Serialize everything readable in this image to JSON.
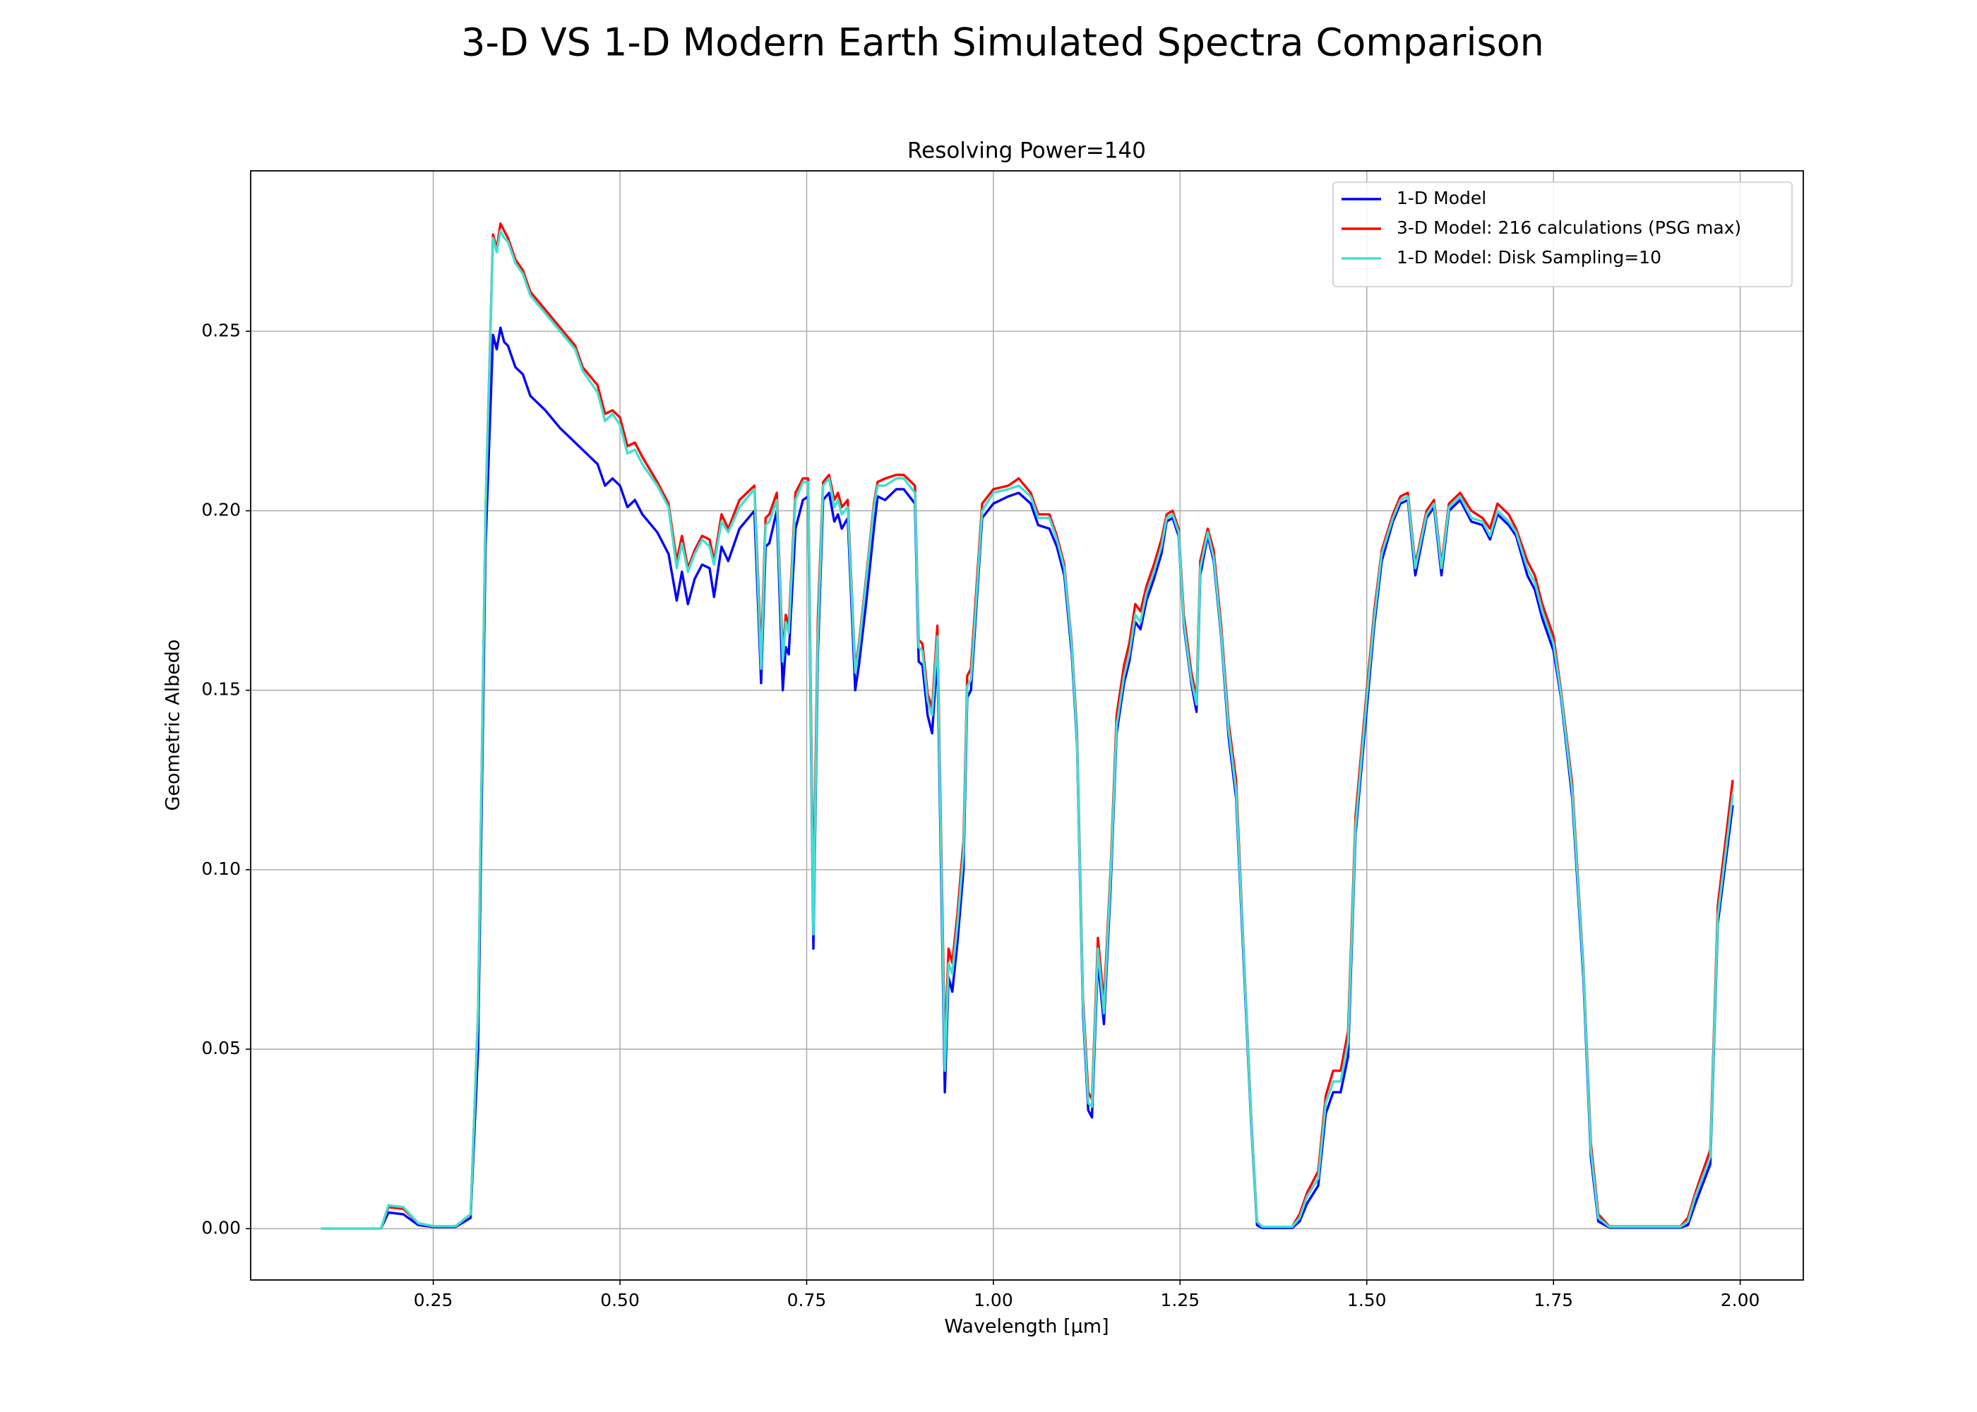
{
  "chart_data": {
    "type": "line",
    "title": "3-D VS 1-D Modern Earth Simulated Spectra Comparison",
    "subtitle": "Resolving Power=140",
    "x_label": "Wavelength [μm]",
    "y_label": "Geometric Albedo",
    "grid": true,
    "legend": "upper right",
    "xlim": [
      0.0055,
      2.0845
    ],
    "ylim": [
      -0.0143,
      0.2947
    ],
    "xticks": [
      {
        "value": 0.25,
        "label": "0.25"
      },
      {
        "value": 0.5,
        "label": "0.50"
      },
      {
        "value": 0.75,
        "label": "0.75"
      },
      {
        "value": 1.0,
        "label": "1.00"
      },
      {
        "value": 1.25,
        "label": "1.25"
      },
      {
        "value": 1.5,
        "label": "1.50"
      },
      {
        "value": 1.75,
        "label": "1.75"
      },
      {
        "value": 2.0,
        "label": "2.00"
      }
    ],
    "yticks": [
      {
        "value": 0,
        "label": "0.00"
      },
      {
        "value": 0.05,
        "label": "0.05"
      },
      {
        "value": 0.1,
        "label": "0.10"
      },
      {
        "value": 0.15,
        "label": "0.15"
      },
      {
        "value": 0.2,
        "label": "0.20"
      },
      {
        "value": 0.25,
        "label": "0.25"
      }
    ],
    "x": [
      0.1,
      0.18,
      0.19,
      0.21,
      0.23,
      0.25,
      0.28,
      0.3,
      0.31,
      0.32,
      0.33,
      0.335,
      0.34,
      0.345,
      0.35,
      0.36,
      0.37,
      0.38,
      0.4,
      0.42,
      0.44,
      0.45,
      0.47,
      0.48,
      0.49,
      0.5,
      0.51,
      0.52,
      0.53,
      0.55,
      0.565,
      0.576,
      0.583,
      0.591,
      0.6,
      0.61,
      0.62,
      0.626,
      0.636,
      0.645,
      0.66,
      0.68,
      0.689,
      0.695,
      0.7,
      0.71,
      0.718,
      0.722,
      0.726,
      0.735,
      0.745,
      0.752,
      0.759,
      0.765,
      0.772,
      0.78,
      0.787,
      0.792,
      0.797,
      0.805,
      0.815,
      0.82,
      0.83,
      0.84,
      0.845,
      0.855,
      0.87,
      0.88,
      0.895,
      0.9,
      0.905,
      0.912,
      0.918,
      0.925,
      0.935,
      0.94,
      0.945,
      0.952,
      0.96,
      0.965,
      0.97,
      0.985,
      1.0,
      1.02,
      1.034,
      1.05,
      1.06,
      1.075,
      1.085,
      1.095,
      1.105,
      1.112,
      1.12,
      1.127,
      1.132,
      1.14,
      1.148,
      1.157,
      1.165,
      1.175,
      1.182,
      1.19,
      1.197,
      1.205,
      1.215,
      1.225,
      1.232,
      1.24,
      1.248,
      1.255,
      1.265,
      1.272,
      1.277,
      1.287,
      1.295,
      1.305,
      1.315,
      1.325,
      1.335,
      1.345,
      1.353,
      1.36,
      1.4,
      1.41,
      1.42,
      1.435,
      1.445,
      1.455,
      1.465,
      1.475,
      1.485,
      1.5,
      1.51,
      1.52,
      1.535,
      1.545,
      1.555,
      1.565,
      1.58,
      1.59,
      1.6,
      1.61,
      1.625,
      1.64,
      1.655,
      1.665,
      1.675,
      1.69,
      1.7,
      1.715,
      1.725,
      1.735,
      1.75,
      1.76,
      1.775,
      1.79,
      1.8,
      1.81,
      1.825,
      1.92,
      1.93,
      1.94,
      1.96,
      1.97,
      1.99
    ],
    "series": [
      {
        "name": "1-D Model",
        "color": "#0000ff",
        "values": [
          0,
          0,
          0.0045,
          0.004,
          0.001,
          0.0005,
          0.0005,
          0.003,
          0.05,
          0.19,
          0.249,
          0.245,
          0.251,
          0.247,
          0.246,
          0.24,
          0.238,
          0.232,
          0.228,
          0.223,
          0.219,
          0.217,
          0.213,
          0.207,
          0.209,
          0.207,
          0.201,
          0.203,
          0.199,
          0.194,
          0.188,
          0.175,
          0.183,
          0.174,
          0.181,
          0.185,
          0.184,
          0.176,
          0.19,
          0.186,
          0.195,
          0.2,
          0.152,
          0.19,
          0.191,
          0.2,
          0.15,
          0.162,
          0.16,
          0.195,
          0.203,
          0.204,
          0.078,
          0.16,
          0.203,
          0.205,
          0.197,
          0.199,
          0.195,
          0.198,
          0.15,
          0.157,
          0.175,
          0.195,
          0.204,
          0.203,
          0.206,
          0.206,
          0.202,
          0.158,
          0.157,
          0.143,
          0.138,
          0.16,
          0.038,
          0.07,
          0.066,
          0.08,
          0.1,
          0.148,
          0.15,
          0.198,
          0.202,
          0.204,
          0.205,
          0.202,
          0.196,
          0.195,
          0.19,
          0.182,
          0.16,
          0.135,
          0.06,
          0.033,
          0.031,
          0.075,
          0.057,
          0.095,
          0.138,
          0.152,
          0.158,
          0.169,
          0.167,
          0.175,
          0.181,
          0.188,
          0.197,
          0.198,
          0.193,
          0.168,
          0.152,
          0.144,
          0.182,
          0.193,
          0.186,
          0.165,
          0.137,
          0.12,
          0.075,
          0.03,
          0.001,
          0.0002,
          0.0002,
          0.002,
          0.007,
          0.012,
          0.032,
          0.038,
          0.038,
          0.048,
          0.11,
          0.145,
          0.168,
          0.186,
          0.197,
          0.202,
          0.203,
          0.182,
          0.198,
          0.201,
          0.182,
          0.2,
          0.203,
          0.197,
          0.196,
          0.192,
          0.199,
          0.196,
          0.193,
          0.182,
          0.178,
          0.17,
          0.161,
          0.148,
          0.12,
          0.07,
          0.02,
          0.002,
          0.0003,
          0.0003,
          0.001,
          0.007,
          0.018,
          0.085,
          0.118
        ]
      },
      {
        "name": "3-D Model: 216 calculations (PSG max)",
        "color": "#ff0000",
        "values": [
          0,
          0,
          0.006,
          0.0055,
          0.0015,
          0.0007,
          0.0007,
          0.004,
          0.06,
          0.2,
          0.277,
          0.273,
          0.28,
          0.278,
          0.276,
          0.27,
          0.267,
          0.261,
          0.256,
          0.251,
          0.246,
          0.24,
          0.235,
          0.227,
          0.228,
          0.226,
          0.218,
          0.219,
          0.215,
          0.208,
          0.202,
          0.186,
          0.193,
          0.184,
          0.189,
          0.193,
          0.192,
          0.186,
          0.199,
          0.195,
          0.203,
          0.207,
          0.16,
          0.198,
          0.199,
          0.205,
          0.16,
          0.171,
          0.168,
          0.205,
          0.209,
          0.209,
          0.09,
          0.17,
          0.208,
          0.21,
          0.203,
          0.205,
          0.201,
          0.203,
          0.156,
          0.163,
          0.182,
          0.202,
          0.208,
          0.209,
          0.21,
          0.21,
          0.207,
          0.164,
          0.163,
          0.149,
          0.145,
          0.168,
          0.05,
          0.078,
          0.074,
          0.088,
          0.108,
          0.154,
          0.156,
          0.202,
          0.206,
          0.207,
          0.209,
          0.205,
          0.199,
          0.199,
          0.193,
          0.185,
          0.163,
          0.138,
          0.064,
          0.038,
          0.036,
          0.081,
          0.063,
          0.1,
          0.143,
          0.157,
          0.163,
          0.174,
          0.172,
          0.179,
          0.185,
          0.192,
          0.199,
          0.2,
          0.195,
          0.171,
          0.155,
          0.148,
          0.186,
          0.195,
          0.189,
          0.168,
          0.141,
          0.125,
          0.078,
          0.032,
          0.002,
          0.0005,
          0.0005,
          0.004,
          0.01,
          0.016,
          0.037,
          0.044,
          0.044,
          0.055,
          0.115,
          0.15,
          0.172,
          0.189,
          0.199,
          0.204,
          0.205,
          0.185,
          0.2,
          0.203,
          0.185,
          0.202,
          0.205,
          0.2,
          0.198,
          0.195,
          0.202,
          0.199,
          0.195,
          0.186,
          0.182,
          0.174,
          0.165,
          0.15,
          0.124,
          0.073,
          0.024,
          0.004,
          0.0006,
          0.0006,
          0.003,
          0.01,
          0.022,
          0.09,
          0.125
        ]
      },
      {
        "name": "1-D Model: Disk Sampling=10",
        "color": "#40e0d0",
        "values": [
          0,
          0,
          0.0065,
          0.006,
          0.0015,
          0.0007,
          0.0007,
          0.004,
          0.06,
          0.2,
          0.276,
          0.272,
          0.278,
          0.276,
          0.275,
          0.269,
          0.266,
          0.26,
          0.255,
          0.25,
          0.245,
          0.239,
          0.233,
          0.225,
          0.227,
          0.224,
          0.216,
          0.217,
          0.213,
          0.207,
          0.201,
          0.184,
          0.191,
          0.183,
          0.188,
          0.192,
          0.19,
          0.185,
          0.197,
          0.194,
          0.201,
          0.206,
          0.156,
          0.196,
          0.197,
          0.203,
          0.158,
          0.169,
          0.166,
          0.203,
          0.208,
          0.208,
          0.082,
          0.165,
          0.207,
          0.209,
          0.201,
          0.203,
          0.199,
          0.201,
          0.155,
          0.162,
          0.181,
          0.201,
          0.207,
          0.207,
          0.209,
          0.209,
          0.205,
          0.162,
          0.161,
          0.147,
          0.143,
          0.165,
          0.044,
          0.074,
          0.071,
          0.085,
          0.105,
          0.151,
          0.153,
          0.2,
          0.205,
          0.206,
          0.207,
          0.204,
          0.198,
          0.198,
          0.192,
          0.184,
          0.162,
          0.136,
          0.062,
          0.035,
          0.034,
          0.078,
          0.06,
          0.098,
          0.14,
          0.154,
          0.16,
          0.171,
          0.169,
          0.177,
          0.183,
          0.19,
          0.198,
          0.199,
          0.194,
          0.169,
          0.153,
          0.146,
          0.184,
          0.194,
          0.187,
          0.166,
          0.139,
          0.122,
          0.077,
          0.031,
          0.002,
          0.0005,
          0.0005,
          0.003,
          0.009,
          0.014,
          0.035,
          0.041,
          0.041,
          0.052,
          0.112,
          0.148,
          0.17,
          0.188,
          0.198,
          0.203,
          0.204,
          0.184,
          0.199,
          0.202,
          0.184,
          0.201,
          0.204,
          0.198,
          0.197,
          0.193,
          0.2,
          0.197,
          0.194,
          0.184,
          0.18,
          0.172,
          0.163,
          0.149,
          0.122,
          0.072,
          0.022,
          0.003,
          0.0005,
          0.0005,
          0.002,
          0.009,
          0.02,
          0.087,
          0.121
        ]
      }
    ]
  }
}
